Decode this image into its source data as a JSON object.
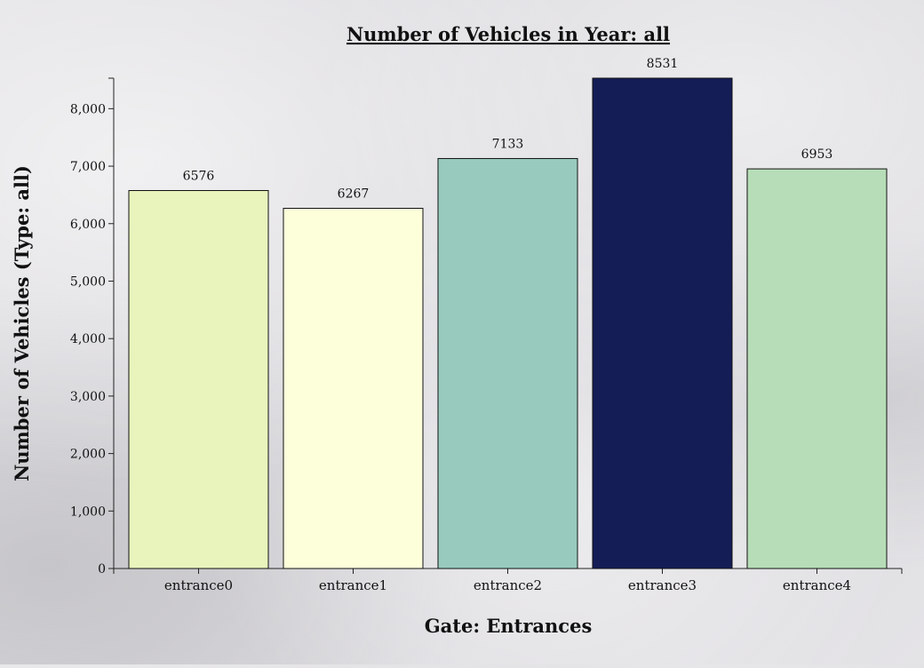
{
  "chart_data": {
    "type": "bar",
    "title": "Number of Vehicles in Year: all",
    "xlabel": "Gate: Entrances",
    "ylabel": "Number of Vehicles (Type: all)",
    "categories": [
      "entrance0",
      "entrance1",
      "entrance2",
      "entrance3",
      "entrance4"
    ],
    "values": [
      6576,
      6267,
      7133,
      8531,
      6953
    ],
    "value_labels": [
      "6576",
      "6267",
      "7133",
      "8531",
      "6953"
    ],
    "colors": [
      "#e8f4bc",
      "#fdffdb",
      "#98cbbe",
      "#141d56",
      "#b6ddb7"
    ],
    "yticks": [
      0,
      1000,
      2000,
      3000,
      4000,
      5000,
      6000,
      7000,
      8000
    ],
    "ytick_labels": [
      "0",
      "1,000",
      "2,000",
      "3,000",
      "4,000",
      "5,000",
      "6,000",
      "7,000",
      "8,000"
    ],
    "ylim": [
      0,
      8531
    ],
    "grid": false,
    "legend": "none"
  }
}
